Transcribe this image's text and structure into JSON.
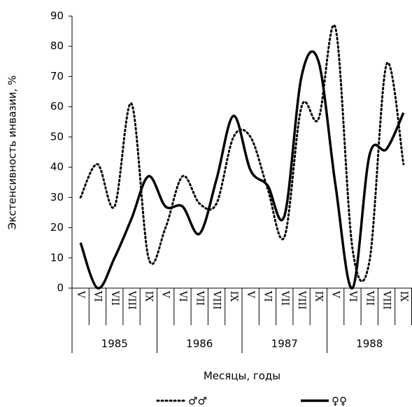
{
  "chart_data": {
    "type": "line",
    "y_label": "Экстенсивность инвазии, %",
    "x_label": "Месяцы, годы",
    "categories": [
      "V",
      "VI",
      "VII",
      "VIII",
      "IX",
      "V",
      "VI",
      "VII",
      "VIII",
      "IX",
      "V",
      "VI",
      "VII",
      "VIII",
      "IX",
      "V",
      "VI",
      "VII",
      "VIII",
      "IX"
    ],
    "category_groups": [
      "1985",
      "1986",
      "1987",
      "1988"
    ],
    "series": [
      {
        "name": "♂♂",
        "color": "#000000",
        "style": "dotted",
        "values": [
          30,
          41,
          27,
          61,
          10,
          20,
          37,
          28,
          28,
          50,
          50,
          33,
          17,
          60,
          56,
          86,
          13,
          9,
          74,
          41
        ]
      },
      {
        "name": "♀♀",
        "color": "#000000",
        "style": "solid",
        "values": [
          15,
          0,
          10,
          23,
          37,
          27,
          27,
          18,
          36,
          57,
          39,
          34,
          24,
          70,
          75,
          34,
          0,
          44,
          46,
          58
        ]
      }
    ],
    "ylim": [
      0,
      90
    ],
    "yticks": [
      0,
      10,
      20,
      30,
      40,
      50,
      60,
      70,
      80,
      90
    ],
    "grid": false
  }
}
